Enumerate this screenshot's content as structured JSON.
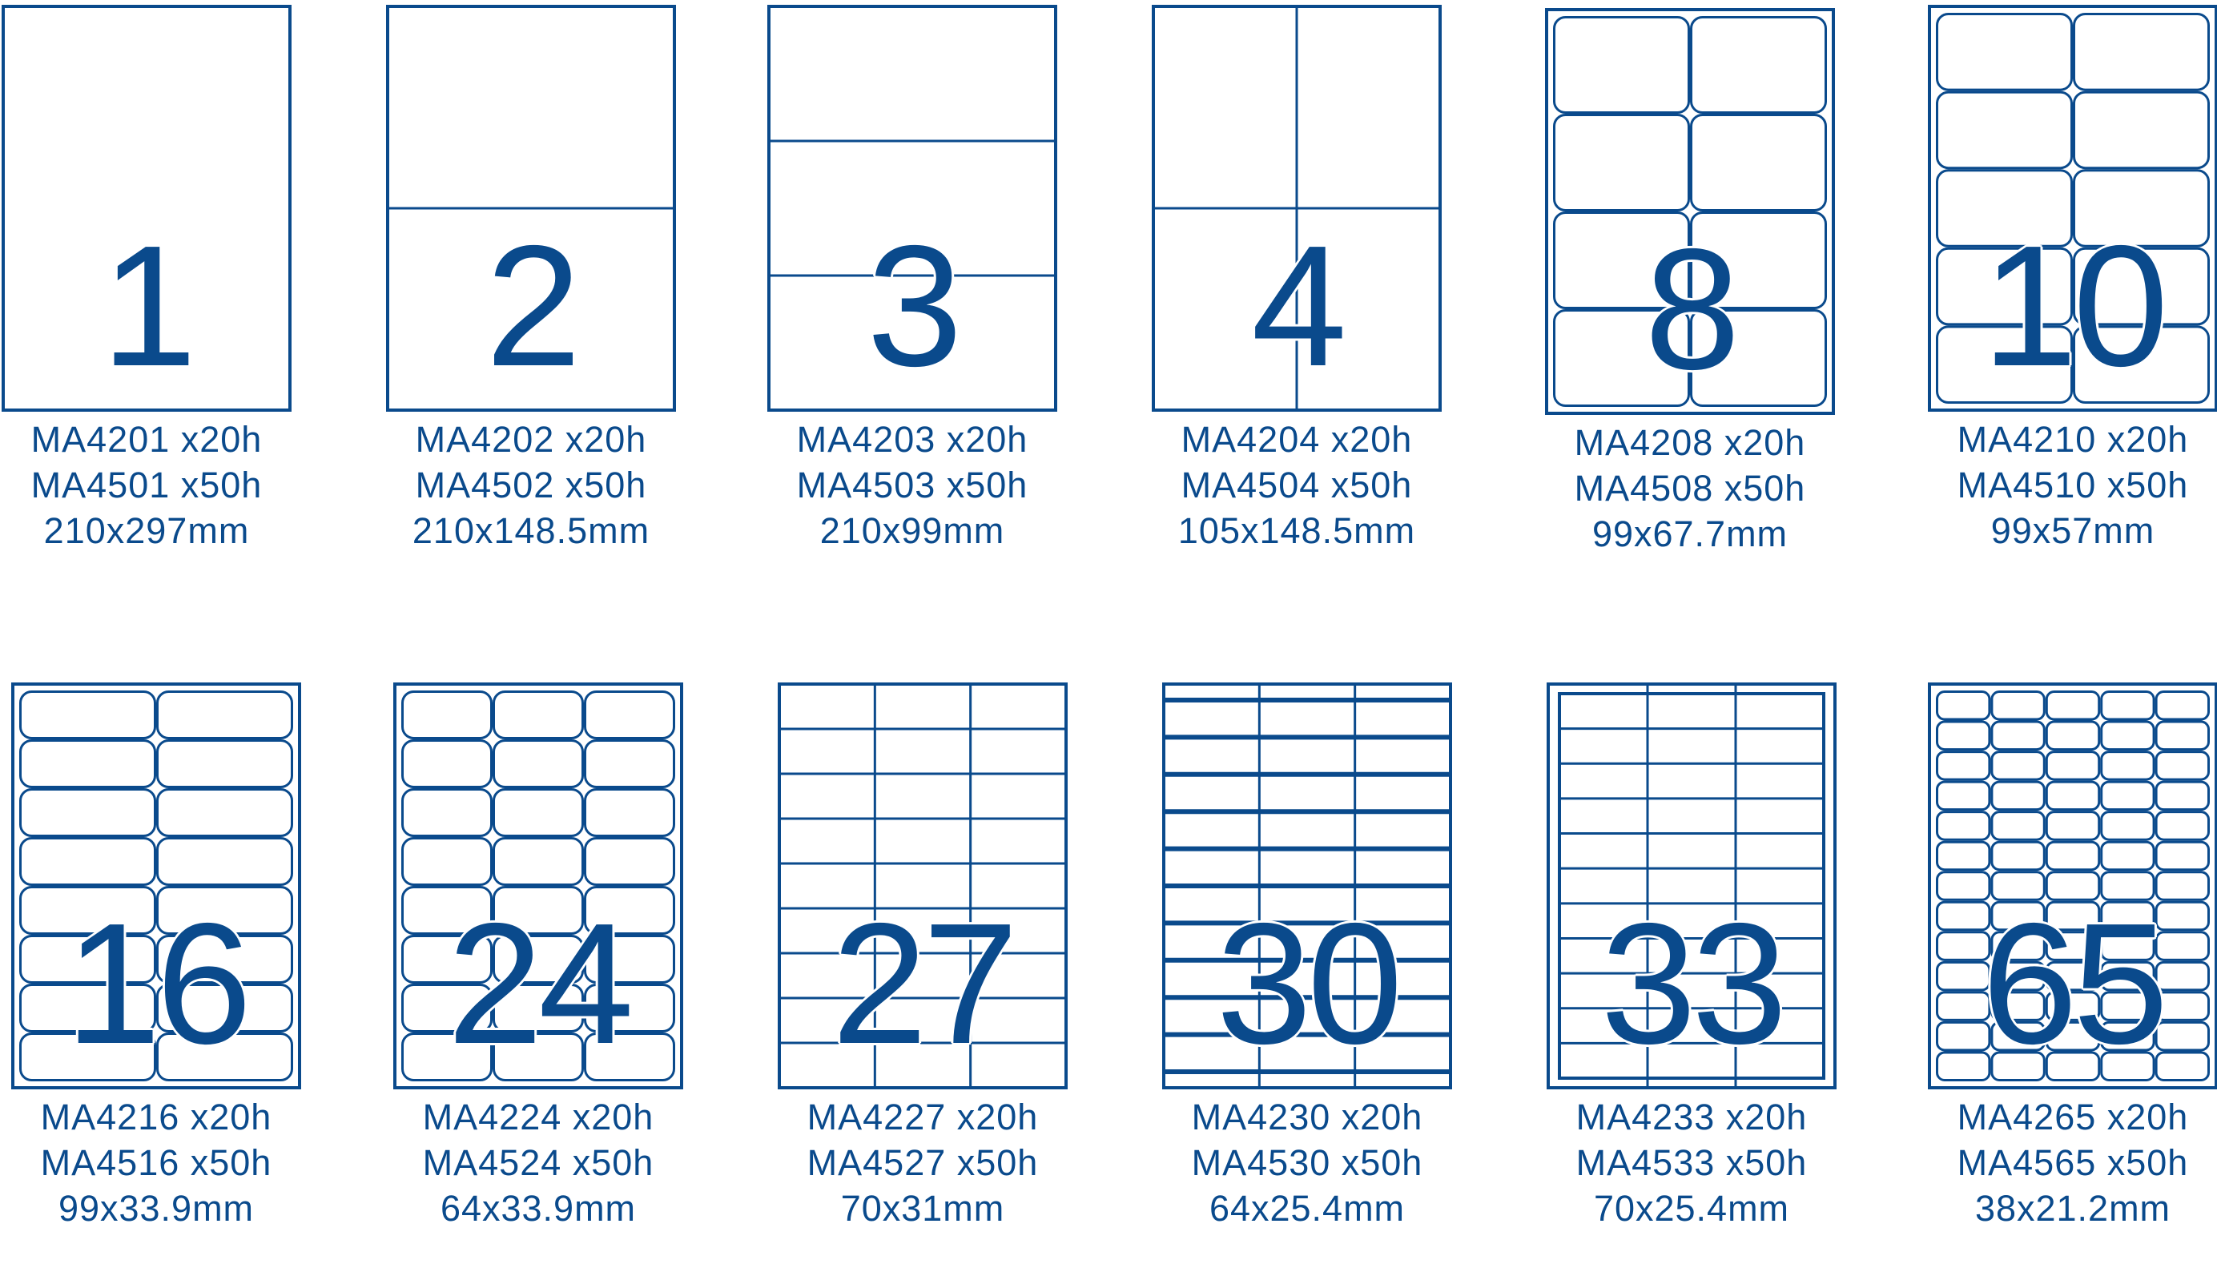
{
  "colors": {
    "line": "#0a4a8c",
    "background": "#ffffff"
  },
  "sheets": [
    {
      "count": "1",
      "code20": "MA4201 x20h",
      "code50": "MA4501 x50h",
      "size": "210x297mm",
      "rows": 1,
      "cols": 1,
      "style": "plain"
    },
    {
      "count": "2",
      "code20": "MA4202 x20h",
      "code50": "MA4502 x50h",
      "size": "210x148.5mm",
      "rows": 2,
      "cols": 1,
      "style": "plain"
    },
    {
      "count": "3",
      "code20": "MA4203 x20h",
      "code50": "MA4503 x50h",
      "size": "210x99mm",
      "rows": 3,
      "cols": 1,
      "style": "plain"
    },
    {
      "count": "4",
      "code20": "MA4204 x20h",
      "code50": "MA4504 x50h",
      "size": "105x148.5mm",
      "rows": 2,
      "cols": 2,
      "style": "plain"
    },
    {
      "count": "8",
      "code20": "MA4208 x20h",
      "code50": "MA4508 x50h",
      "size": "99x67.7mm",
      "rows": 4,
      "cols": 2,
      "style": "rounded"
    },
    {
      "count": "10",
      "code20": "MA4210 x20h",
      "code50": "MA4510 x50h",
      "size": "99x57mm",
      "rows": 5,
      "cols": 2,
      "style": "rounded"
    },
    {
      "count": "16",
      "code20": "MA4216 x20h",
      "code50": "MA4516 x50h",
      "size": "99x33.9mm",
      "rows": 8,
      "cols": 2,
      "style": "rounded"
    },
    {
      "count": "24",
      "code20": "MA4224 x20h",
      "code50": "MA4524 x50h",
      "size": "64x33.9mm",
      "rows": 8,
      "cols": 3,
      "style": "rounded"
    },
    {
      "count": "27",
      "code20": "MA4227 x20h",
      "code50": "MA4527 x50h",
      "size": "70x31mm",
      "rows": 9,
      "cols": 3,
      "style": "plain"
    },
    {
      "count": "30",
      "code20": "MA4230 x20h",
      "code50": "MA4530 x50h",
      "size": "64x25.4mm",
      "rows": 10,
      "cols": 3,
      "style": "thick-rows"
    },
    {
      "count": "33",
      "code20": "MA4233 x20h",
      "code50": "MA4533 x50h",
      "size": "70x25.4mm",
      "rows": 11,
      "cols": 3,
      "style": "framed"
    },
    {
      "count": "65",
      "code20": "MA4265 x20h",
      "code50": "MA4565 x50h",
      "size": "38x21.2mm",
      "rows": 13,
      "cols": 5,
      "style": "rounded"
    }
  ]
}
